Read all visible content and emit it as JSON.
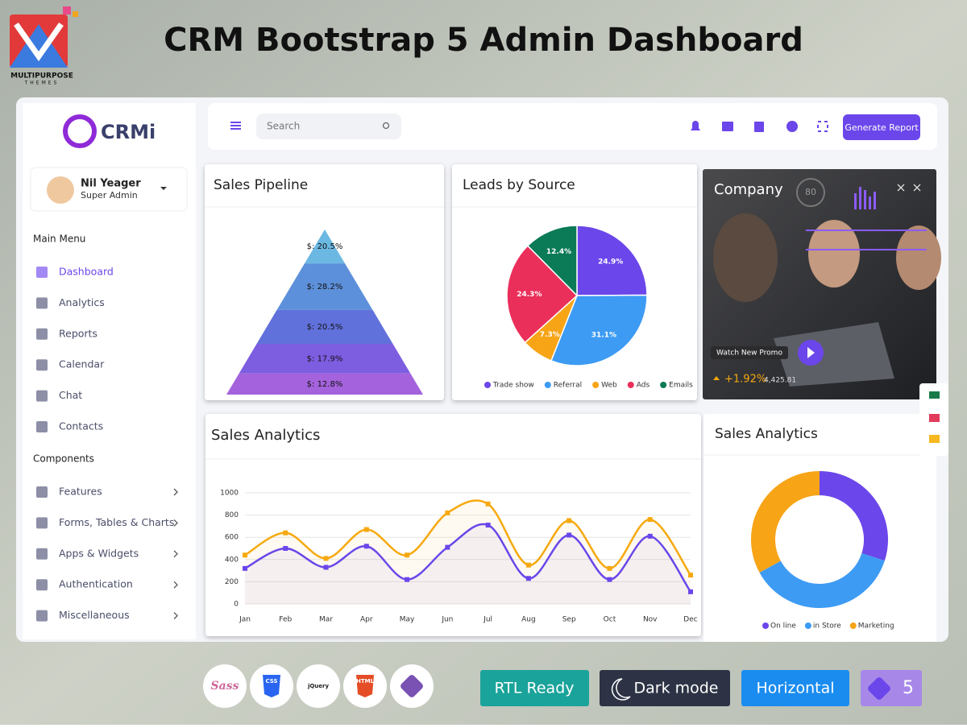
{
  "banner": {
    "title": "CRM Bootstrap 5 Admin Dashboard",
    "logo": "MULTIPURPOSE",
    "logo_sub": "THEMES"
  },
  "sidebar": {
    "brand": "CRMi",
    "user": "Nil Yeager",
    "role": "Super Admin",
    "main_heading": "Main Menu",
    "main_items": [
      "Dashboard",
      "Analytics",
      "Reports",
      "Calendar",
      "Chat",
      "Contacts"
    ],
    "components_heading": "Components",
    "component_items": [
      "Features",
      "Forms, Tables & Charts",
      "Apps & Widgets",
      "Authentication",
      "Miscellaneous"
    ]
  },
  "topbar": {
    "search": "Search",
    "button": "Generate Report"
  },
  "company": {
    "title": "Company",
    "gauge": "80",
    "promo": "Watch New Promo",
    "change": "+1.92%",
    "price": "4,425.81"
  },
  "tech": [
    "Sass",
    "CSS",
    "jQuery",
    "HTML"
  ],
  "badges": [
    "RTL Ready",
    "Dark mode",
    "Horizontal",
    "5"
  ],
  "chart_data": [
    {
      "type": "funnel",
      "title": "Sales Pipeline",
      "values": [
        20.5,
        28.2,
        20.5,
        17.9,
        12.8
      ],
      "value_labels": [
        "$: 20.5%",
        "$: 28.2%",
        "$: 20.5%",
        "$: 17.9%",
        "$: 12.8%"
      ],
      "colors": [
        "#6bb8e2",
        "#5d90da",
        "#6171db",
        "#7d5de0",
        "#a463dc"
      ]
    },
    {
      "type": "pie",
      "title": "Leads by Source",
      "categories": [
        "Trade show",
        "Referral",
        "Web",
        "Ads",
        "Emails"
      ],
      "values": [
        24.9,
        31.1,
        7.3,
        24.3,
        12.4
      ],
      "value_labels": [
        "24.9%",
        "31.1%",
        "7.3%",
        "24.3%",
        "12.4%"
      ],
      "colors": [
        "#6b46ea",
        "#3d9bf3",
        "#f7a417",
        "#ea2f5a",
        "#0b7a56"
      ]
    },
    {
      "type": "line",
      "title": "Sales Analytics",
      "categories": [
        "Jan",
        "Feb",
        "Mar",
        "Apr",
        "May",
        "Jun",
        "Jul",
        "Aug",
        "Sep",
        "Oct",
        "Nov",
        "Dec"
      ],
      "series": [
        {
          "color": "#f6a90f",
          "values": [
            440,
            640,
            410,
            670,
            440,
            820,
            900,
            350,
            750,
            320,
            760,
            260
          ]
        },
        {
          "color": "#6b46ea",
          "values": [
            320,
            500,
            330,
            520,
            220,
            510,
            710,
            230,
            620,
            220,
            610,
            110
          ]
        }
      ],
      "ylim": [
        0,
        1000
      ],
      "yticks": [
        0,
        200,
        400,
        600,
        800,
        1000
      ],
      "grid": true
    },
    {
      "type": "donut",
      "title": "Sales Analytics",
      "categories": [
        "On line",
        "in Store",
        "Marketing"
      ],
      "values": [
        30,
        37,
        33
      ],
      "colors": [
        "#6b46ea",
        "#3d9bf3",
        "#f7a417"
      ]
    }
  ]
}
